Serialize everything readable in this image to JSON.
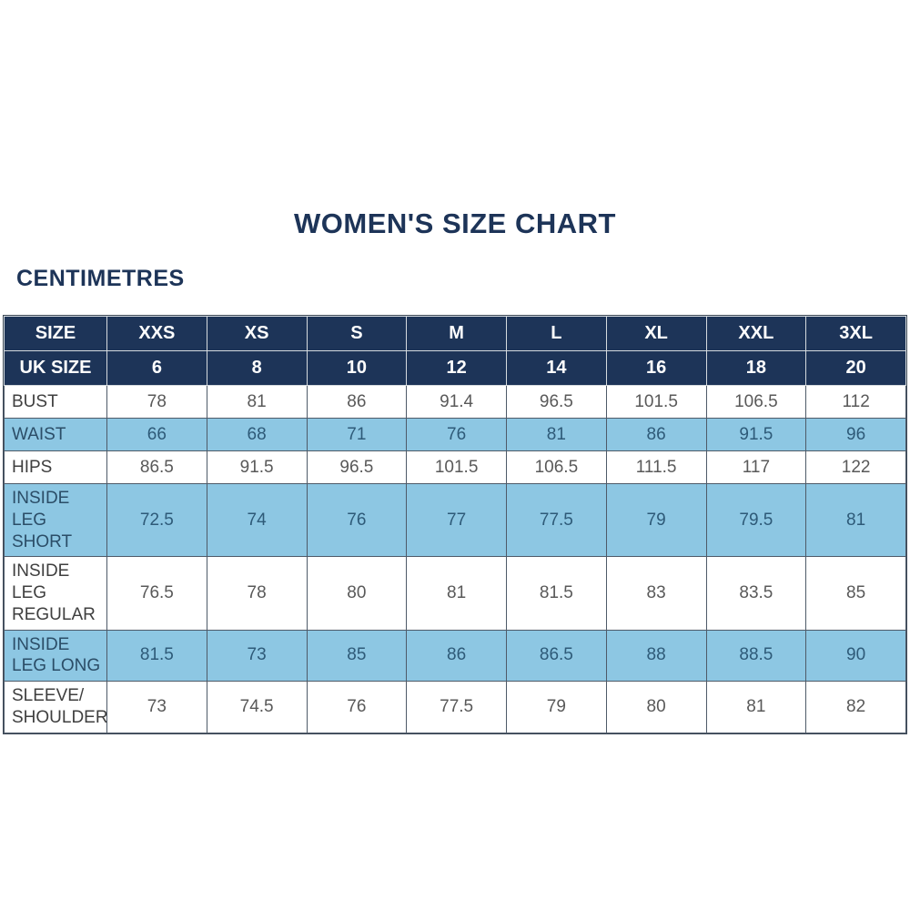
{
  "page": {
    "title": "WOMEN'S SIZE CHART",
    "unit_label": "CENTIMETRES"
  },
  "colors": {
    "navy": "#1d3458",
    "light_blue": "#8dc7e3"
  },
  "table": {
    "header_rows": [
      {
        "label": "SIZE",
        "values": [
          "XXS",
          "XS",
          "S",
          "M",
          "L",
          "XL",
          "XXL",
          "3XL"
        ]
      },
      {
        "label": "UK SIZE",
        "values": [
          "6",
          "8",
          "10",
          "12",
          "14",
          "16",
          "18",
          "20"
        ]
      }
    ],
    "rows": [
      {
        "label": "BUST",
        "values": [
          "78",
          "81",
          "86",
          "91.4",
          "96.5",
          "101.5",
          "106.5",
          "112"
        ]
      },
      {
        "label": "WAIST",
        "values": [
          "66",
          "68",
          "71",
          "76",
          "81",
          "86",
          "91.5",
          "96"
        ]
      },
      {
        "label": "HIPS",
        "values": [
          "86.5",
          "91.5",
          "96.5",
          "101.5",
          "106.5",
          "111.5",
          "117",
          "122"
        ]
      },
      {
        "label": "INSIDE LEG SHORT",
        "values": [
          "72.5",
          "74",
          "76",
          "77",
          "77.5",
          "79",
          "79.5",
          "81"
        ]
      },
      {
        "label": "INSIDE LEG REGULAR",
        "values": [
          "76.5",
          "78",
          "80",
          "81",
          "81.5",
          "83",
          "83.5",
          "85"
        ]
      },
      {
        "label": "INSIDE LEG LONG",
        "values": [
          "81.5",
          "73",
          "85",
          "86",
          "86.5",
          "88",
          "88.5",
          "90"
        ]
      },
      {
        "label": "SLEEVE/ SHOULDER",
        "values": [
          "73",
          "74.5",
          "76",
          "77.5",
          "79",
          "80",
          "81",
          "82"
        ]
      }
    ]
  },
  "chart_data": {
    "type": "table",
    "title": "WOMEN'S SIZE CHART",
    "unit": "CENTIMETRES",
    "columns": [
      "XXS",
      "XS",
      "S",
      "M",
      "L",
      "XL",
      "XXL",
      "3XL"
    ],
    "uk_sizes": [
      6,
      8,
      10,
      12,
      14,
      16,
      18,
      20
    ],
    "measurements": {
      "BUST": [
        78,
        81,
        86,
        91.4,
        96.5,
        101.5,
        106.5,
        112
      ],
      "WAIST": [
        66,
        68,
        71,
        76,
        81,
        86,
        91.5,
        96
      ],
      "HIPS": [
        86.5,
        91.5,
        96.5,
        101.5,
        106.5,
        111.5,
        117,
        122
      ],
      "INSIDE LEG SHORT": [
        72.5,
        74,
        76,
        77,
        77.5,
        79,
        79.5,
        81
      ],
      "INSIDE LEG REGULAR": [
        76.5,
        78,
        80,
        81,
        81.5,
        83,
        83.5,
        85
      ],
      "INSIDE LEG LONG": [
        81.5,
        73,
        85,
        86,
        86.5,
        88,
        88.5,
        90
      ],
      "SLEEVE/ SHOULDER": [
        73,
        74.5,
        76,
        77.5,
        79,
        80,
        81,
        82
      ]
    }
  }
}
